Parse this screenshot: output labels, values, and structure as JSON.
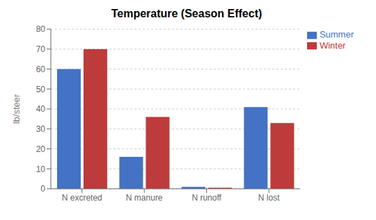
{
  "chart_data": {
    "type": "bar",
    "title": "Temperature (Season Effect)",
    "categories": [
      "N excreted",
      "N manure",
      "N runoff",
      "N lost"
    ],
    "series": [
      {
        "name": "Summer",
        "color": "#4472C4",
        "values": [
          60,
          16,
          1,
          41
        ]
      },
      {
        "name": "Winter",
        "color": "#BE3B3B",
        "values": [
          70,
          36,
          0.5,
          33
        ]
      }
    ],
    "ylabel": "lb/steer",
    "ylim": [
      0,
      80
    ],
    "yticks": [
      0,
      10,
      20,
      30,
      40,
      50,
      60,
      70,
      80
    ],
    "grid": true,
    "legend": "upper right"
  }
}
